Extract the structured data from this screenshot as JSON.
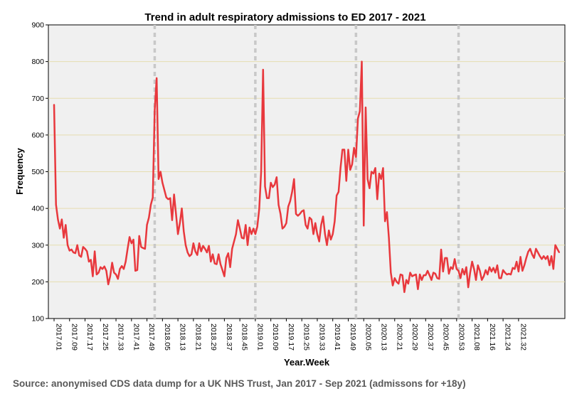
{
  "chart_data": {
    "type": "line",
    "title": "Trend in adult respiratory admissions to ED 2017 - 2021",
    "xlabel": "Year.Week",
    "ylabel": "Frequency",
    "ylim": [
      100,
      900
    ],
    "yticks": [
      100,
      200,
      300,
      400,
      500,
      600,
      700,
      800,
      900
    ],
    "grid": true,
    "xtick_labels": [
      "2017.01",
      "2017.09",
      "2017.17",
      "2017.25",
      "2017.33",
      "2017.41",
      "2017.49",
      "2018.05",
      "2018.13",
      "2018.21",
      "2018.29",
      "2018.37",
      "2018.45",
      "2019.01",
      "2019.09",
      "2019.17",
      "2019.25",
      "2019.33",
      "2019.41",
      "2019.49",
      "2020.05",
      "2020.13",
      "2020.21",
      "2020.29",
      "2020.37",
      "2020.45",
      "2020.53",
      "2021.08",
      "2021.16",
      "2021.24",
      "2021.32"
    ],
    "year_boundaries": [
      "2018.01",
      "2019.01",
      "2020.01",
      "2021.01"
    ],
    "colors": {
      "line": "#e8383d",
      "background": "#f0f0f0",
      "grid": "#e5ddb0",
      "boundary": "#c8c8c8"
    },
    "values": [
      683,
      410,
      370,
      345,
      370,
      320,
      355,
      300,
      285,
      288,
      280,
      278,
      300,
      272,
      268,
      295,
      290,
      283,
      255,
      260,
      215,
      283,
      220,
      225,
      240,
      235,
      242,
      230,
      193,
      215,
      252,
      225,
      220,
      208,
      235,
      243,
      235,
      255,
      290,
      322,
      305,
      315,
      230,
      232,
      325,
      295,
      292,
      290,
      355,
      375,
      410,
      430,
      668,
      755,
      480,
      500,
      470,
      450,
      430,
      425,
      428,
      368,
      438,
      385,
      330,
      360,
      400,
      338,
      300,
      280,
      270,
      275,
      305,
      283,
      273,
      305,
      283,
      298,
      290,
      280,
      298,
      255,
      275,
      250,
      248,
      275,
      248,
      232,
      215,
      265,
      278,
      240,
      290,
      310,
      330,
      368,
      345,
      320,
      318,
      355,
      300,
      348,
      330,
      345,
      330,
      350,
      398,
      500,
      778,
      460,
      428,
      428,
      470,
      458,
      465,
      485,
      410,
      385,
      345,
      350,
      360,
      405,
      420,
      445,
      480,
      385,
      380,
      385,
      392,
      395,
      355,
      345,
      375,
      370,
      330,
      360,
      330,
      310,
      355,
      378,
      330,
      300,
      340,
      315,
      330,
      365,
      435,
      445,
      510,
      560,
      560,
      475,
      560,
      505,
      520,
      565,
      540,
      645,
      665,
      800,
      353,
      675,
      480,
      455,
      500,
      495,
      510,
      425,
      495,
      480,
      510,
      365,
      390,
      320,
      225,
      190,
      210,
      200,
      195,
      220,
      218,
      172,
      205,
      195,
      225,
      215,
      218,
      220,
      180,
      220,
      205,
      218,
      218,
      230,
      218,
      205,
      225,
      222,
      210,
      208,
      288,
      228,
      265,
      265,
      222,
      240,
      235,
      262,
      235,
      230,
      210,
      235,
      220,
      240,
      185,
      225,
      255,
      235,
      205,
      245,
      230,
      205,
      215,
      232,
      220,
      240,
      228,
      238,
      225,
      245,
      210,
      210,
      232,
      225,
      220,
      222,
      220,
      238,
      235,
      255,
      228,
      268,
      230,
      245,
      265,
      282,
      290,
      275,
      265,
      290,
      280,
      270,
      262,
      270,
      262,
      270,
      245,
      270,
      235,
      300,
      290,
      280
    ]
  },
  "source_note": "Source: anonymised CDS data dump for a UK NHS Trust, Jan 2017 - Sep 2021 (admissons for +18y)"
}
